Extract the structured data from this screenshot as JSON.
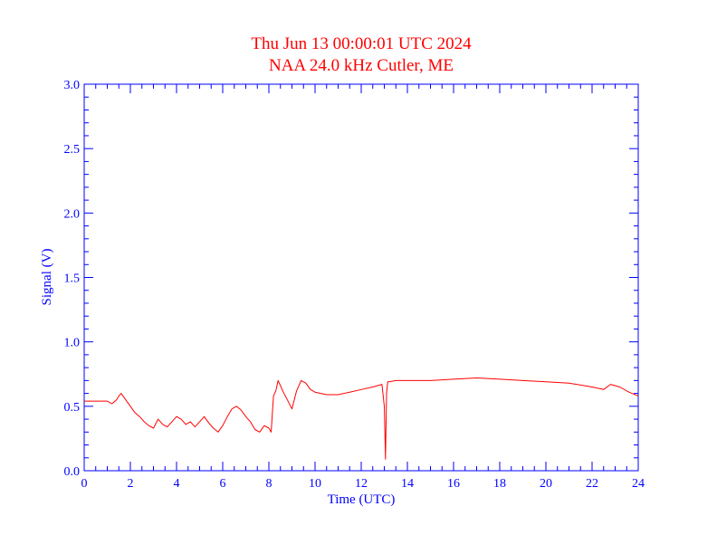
{
  "chart_data": {
    "type": "line",
    "title": "Thu Jun 13 00:00:01 UTC 2024",
    "subtitle": "NAA 24.0 kHz Cutler, ME",
    "xlabel": "Time (UTC)",
    "ylabel": "Signal (V)",
    "xlim": [
      0,
      24
    ],
    "ylim": [
      0,
      3.0
    ],
    "x_ticks": [
      "0",
      "2",
      "4",
      "6",
      "8",
      "10",
      "12",
      "14",
      "16",
      "18",
      "20",
      "22",
      "24"
    ],
    "y_ticks": [
      "0.0",
      "0.5",
      "1.0",
      "1.5",
      "2.0",
      "2.5",
      "3.0"
    ],
    "grid": false,
    "colors": {
      "series": "#ff0000",
      "axes": "#0000ff",
      "title": "#ff0000"
    },
    "series": [
      {
        "x": [
          0,
          0.5,
          1.0,
          1.2,
          1.4,
          1.5,
          1.6,
          1.8,
          2.0,
          2.2,
          2.4,
          2.6,
          2.8,
          3.0,
          3.2,
          3.4,
          3.6,
          3.8,
          4.0,
          4.2,
          4.4,
          4.6,
          4.8,
          5.0,
          5.2,
          5.4,
          5.6,
          5.8,
          6.0,
          6.2,
          6.4,
          6.6,
          6.8,
          7.0,
          7.2,
          7.4,
          7.6,
          7.8,
          8.0,
          8.1,
          8.2,
          8.3,
          8.4,
          8.5,
          8.6,
          8.8,
          9.0,
          9.2,
          9.4,
          9.6,
          9.8,
          10.0,
          10.5,
          11.0,
          11.5,
          12.0,
          12.5,
          12.9,
          13.0,
          13.05,
          13.1,
          13.15,
          13.2,
          13.5,
          14.0,
          15.0,
          16.0,
          17.0,
          18.0,
          19.0,
          20.0,
          21.0,
          22.0,
          22.5,
          22.8,
          23.2,
          23.6,
          24.0
        ],
        "y": [
          0.54,
          0.54,
          0.54,
          0.52,
          0.55,
          0.58,
          0.6,
          0.55,
          0.5,
          0.45,
          0.42,
          0.38,
          0.35,
          0.33,
          0.4,
          0.36,
          0.34,
          0.38,
          0.42,
          0.4,
          0.36,
          0.38,
          0.34,
          0.38,
          0.42,
          0.37,
          0.33,
          0.3,
          0.35,
          0.42,
          0.48,
          0.5,
          0.47,
          0.42,
          0.38,
          0.32,
          0.3,
          0.35,
          0.33,
          0.3,
          0.58,
          0.62,
          0.7,
          0.66,
          0.62,
          0.55,
          0.48,
          0.62,
          0.7,
          0.68,
          0.63,
          0.61,
          0.59,
          0.59,
          0.61,
          0.63,
          0.65,
          0.67,
          0.5,
          0.09,
          0.6,
          0.69,
          0.69,
          0.7,
          0.7,
          0.7,
          0.71,
          0.72,
          0.71,
          0.7,
          0.69,
          0.68,
          0.65,
          0.63,
          0.67,
          0.65,
          0.61,
          0.58
        ]
      }
    ]
  }
}
